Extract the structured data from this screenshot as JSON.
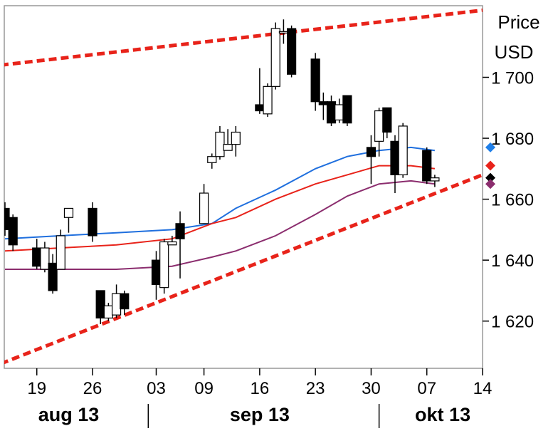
{
  "chart_data": {
    "type": "candlestick",
    "unit_label": [
      "Price",
      "USD"
    ],
    "y_ticks": [
      1620,
      1640,
      1660,
      1680,
      1700
    ],
    "y_tick_labels": [
      "1 620",
      "1 640",
      "1 660",
      "1 680",
      "1 700"
    ],
    "ylim": [
      1604.5,
      1723.5
    ],
    "xlim": [
      "2013-08-15",
      "2013-10-14"
    ],
    "x_ticks": [
      "2013-08-19",
      "2013-08-26",
      "2013-09-03",
      "2013-09-09",
      "2013-09-16",
      "2013-09-23",
      "2013-09-30",
      "2013-10-07",
      "2013-10-14"
    ],
    "x_tick_labels": [
      "19",
      "26",
      "03",
      "09",
      "16",
      "23",
      "30",
      "07",
      "14"
    ],
    "months": [
      {
        "label": "aug 13",
        "center": "2013-08-23"
      },
      {
        "label": "sep 13",
        "center": "2013-09-16"
      },
      {
        "label": "okt 13",
        "center": "2013-10-09"
      }
    ],
    "month_separators": [
      "2013-09-02",
      "2013-10-01"
    ],
    "candles": [
      {
        "date": "2013-08-15",
        "open": 1657,
        "high": 1659,
        "low": 1648,
        "close": 1650
      },
      {
        "date": "2013-08-16",
        "open": 1654,
        "high": 1655,
        "low": 1643,
        "close": 1645
      },
      {
        "date": "2013-08-19",
        "open": 1644,
        "high": 1647,
        "low": 1637,
        "close": 1638
      },
      {
        "date": "2013-08-20",
        "open": 1637,
        "high": 1646,
        "low": 1636,
        "close": 1644
      },
      {
        "date": "2013-08-21",
        "open": 1639,
        "high": 1642,
        "low": 1629,
        "close": 1630
      },
      {
        "date": "2013-08-22",
        "open": 1637,
        "high": 1650,
        "low": 1637,
        "close": 1648
      },
      {
        "date": "2013-08-23",
        "open": 1654,
        "high": 1657,
        "low": 1649,
        "close": 1657
      },
      {
        "date": "2013-08-26",
        "open": 1657,
        "high": 1659,
        "low": 1646,
        "close": 1648
      },
      {
        "date": "2013-08-27",
        "open": 1630,
        "high": 1630,
        "low": 1619,
        "close": 1621
      },
      {
        "date": "2013-08-28",
        "open": 1621,
        "high": 1626,
        "low": 1620,
        "close": 1625
      },
      {
        "date": "2013-08-29",
        "open": 1622,
        "high": 1632,
        "low": 1621,
        "close": 1629
      },
      {
        "date": "2013-08-30",
        "open": 1629,
        "high": 1630,
        "low": 1622,
        "close": 1624
      },
      {
        "date": "2013-09-03",
        "open": 1640,
        "high": 1643,
        "low": 1627,
        "close": 1632
      },
      {
        "date": "2013-09-04",
        "open": 1631,
        "high": 1647,
        "low": 1629,
        "close": 1646
      },
      {
        "date": "2013-09-05",
        "open": 1645,
        "high": 1648,
        "low": 1645,
        "close": 1646
      },
      {
        "date": "2013-09-06",
        "open": 1652,
        "high": 1656,
        "low": 1634,
        "close": 1647
      },
      {
        "date": "2013-09-09",
        "open": 1652,
        "high": 1665,
        "low": 1652,
        "close": 1662
      },
      {
        "date": "2013-09-10",
        "open": 1672,
        "high": 1675,
        "low": 1670,
        "close": 1674
      },
      {
        "date": "2013-09-11",
        "open": 1674,
        "high": 1684,
        "low": 1673,
        "close": 1682
      },
      {
        "date": "2013-09-12",
        "open": 1676,
        "high": 1683,
        "low": 1676,
        "close": 1678
      },
      {
        "date": "2013-09-13",
        "open": 1678,
        "high": 1684,
        "low": 1674,
        "close": 1682
      },
      {
        "date": "2013-09-16",
        "open": 1691,
        "high": 1703,
        "low": 1688,
        "close": 1689
      },
      {
        "date": "2013-09-17",
        "open": 1688,
        "high": 1698,
        "low": 1687,
        "close": 1697
      },
      {
        "date": "2013-09-18",
        "open": 1697,
        "high": 1718,
        "low": 1696,
        "close": 1716
      },
      {
        "date": "2013-09-19",
        "open": 1715,
        "high": 1719,
        "low": 1711,
        "close": 1715
      },
      {
        "date": "2013-09-20",
        "open": 1716,
        "high": 1717,
        "low": 1700,
        "close": 1701
      },
      {
        "date": "2013-09-23",
        "open": 1706,
        "high": 1708,
        "low": 1689,
        "close": 1692
      },
      {
        "date": "2013-09-24",
        "open": 1692,
        "high": 1695,
        "low": 1686,
        "close": 1691
      },
      {
        "date": "2013-09-25",
        "open": 1692,
        "high": 1694,
        "low": 1684,
        "close": 1685
      },
      {
        "date": "2013-09-26",
        "open": 1686,
        "high": 1693,
        "low": 1685,
        "close": 1691
      },
      {
        "date": "2013-09-27",
        "open": 1694,
        "high": 1694,
        "low": 1684,
        "close": 1685
      },
      {
        "date": "2013-09-30",
        "open": 1677,
        "high": 1681,
        "low": 1665,
        "close": 1674
      },
      {
        "date": "2013-10-01",
        "open": 1679,
        "high": 1690,
        "low": 1674,
        "close": 1689
      },
      {
        "date": "2013-10-02",
        "open": 1690,
        "high": 1690,
        "low": 1680,
        "close": 1682
      },
      {
        "date": "2013-10-03",
        "open": 1679,
        "high": 1681,
        "low": 1662,
        "close": 1668
      },
      {
        "date": "2013-10-04",
        "open": 1668,
        "high": 1685,
        "low": 1667,
        "close": 1684
      },
      {
        "date": "2013-10-07",
        "open": 1676,
        "high": 1677,
        "low": 1665,
        "close": 1666
      },
      {
        "date": "2013-10-08",
        "open": 1666,
        "high": 1668,
        "low": 1664,
        "close": 1667
      }
    ],
    "moving_averages": [
      {
        "color": "#1f6fde",
        "points": [
          {
            "date": "2013-08-15",
            "value": 1647
          },
          {
            "date": "2013-08-22",
            "value": 1648
          },
          {
            "date": "2013-08-29",
            "value": 1649
          },
          {
            "date": "2013-09-05",
            "value": 1650
          },
          {
            "date": "2013-09-10",
            "value": 1652
          },
          {
            "date": "2013-09-13",
            "value": 1657
          },
          {
            "date": "2013-09-18",
            "value": 1663
          },
          {
            "date": "2013-09-23",
            "value": 1670
          },
          {
            "date": "2013-09-27",
            "value": 1674
          },
          {
            "date": "2013-10-01",
            "value": 1676
          },
          {
            "date": "2013-10-05",
            "value": 1677
          },
          {
            "date": "2013-10-08",
            "value": 1676
          }
        ]
      },
      {
        "color": "#e8231a",
        "points": [
          {
            "date": "2013-08-15",
            "value": 1643
          },
          {
            "date": "2013-08-22",
            "value": 1644
          },
          {
            "date": "2013-08-29",
            "value": 1645
          },
          {
            "date": "2013-09-05",
            "value": 1647
          },
          {
            "date": "2013-09-10",
            "value": 1652
          },
          {
            "date": "2013-09-13",
            "value": 1654
          },
          {
            "date": "2013-09-18",
            "value": 1660
          },
          {
            "date": "2013-09-23",
            "value": 1665
          },
          {
            "date": "2013-09-27",
            "value": 1668
          },
          {
            "date": "2013-10-01",
            "value": 1671
          },
          {
            "date": "2013-10-05",
            "value": 1671
          },
          {
            "date": "2013-10-08",
            "value": 1670
          }
        ]
      },
      {
        "color": "#8b2d6e",
        "points": [
          {
            "date": "2013-08-15",
            "value": 1637
          },
          {
            "date": "2013-08-22",
            "value": 1637
          },
          {
            "date": "2013-08-29",
            "value": 1637
          },
          {
            "date": "2013-09-05",
            "value": 1638
          },
          {
            "date": "2013-09-10",
            "value": 1641
          },
          {
            "date": "2013-09-13",
            "value": 1643
          },
          {
            "date": "2013-09-18",
            "value": 1648
          },
          {
            "date": "2013-09-23",
            "value": 1655
          },
          {
            "date": "2013-09-27",
            "value": 1661
          },
          {
            "date": "2013-10-01",
            "value": 1665
          },
          {
            "date": "2013-10-05",
            "value": 1666
          },
          {
            "date": "2013-10-08",
            "value": 1665
          }
        ]
      }
    ],
    "trend_lines": [
      {
        "color": "#e8231a",
        "style": "dashed",
        "start": {
          "date": "2013-08-15",
          "value": 1704
        },
        "end": {
          "date": "2013-10-14",
          "value": 1722
        }
      },
      {
        "color": "#e8231a",
        "style": "dashed",
        "start": {
          "date": "2013-08-15",
          "value": 1606
        },
        "end": {
          "date": "2013-10-14",
          "value": 1668
        }
      }
    ],
    "end_markers": [
      {
        "color": "#1f7fe8",
        "value": 1677
      },
      {
        "color": "#e8231a",
        "value": 1671
      },
      {
        "color": "#000000",
        "value": 1667
      },
      {
        "color": "#8b2d6e",
        "value": 1665
      }
    ],
    "up_candle_color": "#ffffff",
    "down_candle_color": "#000000"
  }
}
